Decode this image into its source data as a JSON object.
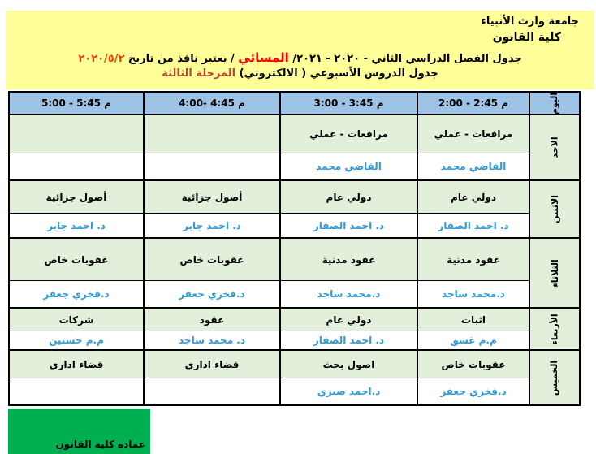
{
  "header": {
    "university": "جامعة وارث الأنبياء",
    "college": "كلية القانون",
    "title1_text": "جدول الفصل الدراسي الثاني - ٢٠٢٠ - ٢٠٢١/ ",
    "title1_evening": "المسائي",
    "title1_valid": " / يعتبر نافذ من تاريخ ",
    "title1_date": "٢٠٢٠/٥/٢",
    "title2_text": "جدول الدروس الأسبوعي ( الالكتروني) ",
    "title2_stage": "المرحلة الثالثة"
  },
  "schedule": {
    "day_column_header": "اليوم",
    "time_slots": [
      "2:00 - 2:45 م",
      "3:00 - 3:45 م",
      "4:00- 4:45 م",
      "5:00 - 5:45 م"
    ],
    "days": [
      {
        "name": "الاحد",
        "classes": [
          {
            "subject": "مرافعات - عملي",
            "teacher": "القاضي محمد"
          },
          {
            "subject": "مرافعات - عملي",
            "teacher": "القاضي محمد"
          },
          {
            "subject": "",
            "teacher": ""
          },
          {
            "subject": "",
            "teacher": ""
          }
        ]
      },
      {
        "name": "الاثنين",
        "classes": [
          {
            "subject": "دولي عام",
            "teacher": "د. احمد الصفار"
          },
          {
            "subject": "دولي عام",
            "teacher": "د. احمد الصفار"
          },
          {
            "subject": "أصول جزائية",
            "teacher": "د. احمد جابر"
          },
          {
            "subject": "أصول جزائية",
            "teacher": "د. احمد جابر"
          }
        ]
      },
      {
        "name": "الثلاثاء",
        "classes": [
          {
            "subject": "عقود مدنية",
            "teacher": "د.محمد ساجد"
          },
          {
            "subject": "عقود مدنية",
            "teacher": "د.محمد ساجد"
          },
          {
            "subject": "عقوبات خاص",
            "teacher": "د.فخري جعفر"
          },
          {
            "subject": "عقوبات خاص",
            "teacher": "د.فخري جعفر"
          }
        ]
      },
      {
        "name": "الأربعاء",
        "classes": [
          {
            "subject": "اثبات",
            "teacher": "م.م غسق"
          },
          {
            "subject": "دولي عام",
            "teacher": "د. احمد الصفار"
          },
          {
            "subject": "عقود",
            "teacher": "د. محمد ساجد"
          },
          {
            "subject": "شركات",
            "teacher": "م.م حسنين"
          }
        ]
      },
      {
        "name": "الخميس",
        "classes": [
          {
            "subject": "عقوبات خاص",
            "teacher": "د.فخري جعفر"
          },
          {
            "subject": "اصول بحث",
            "teacher": "د.احمد صبري"
          },
          {
            "subject": "قضاء اداري",
            "teacher": ""
          },
          {
            "subject": "قضاء اداري",
            "teacher": ""
          }
        ]
      }
    ]
  },
  "footer": {
    "dean_box": "عمادة كلية القانون"
  },
  "colors": {
    "banner_bg": "#ffff99",
    "table_header_bg": "#9dc3e6",
    "subject_cell_bg": "#e2efda",
    "teacher_text": "#2e9bd6",
    "evening_red": "#fe0000",
    "date_red": "#ff3d00",
    "stage_red": "#b5492d",
    "dean_box_green": "#00b050"
  }
}
